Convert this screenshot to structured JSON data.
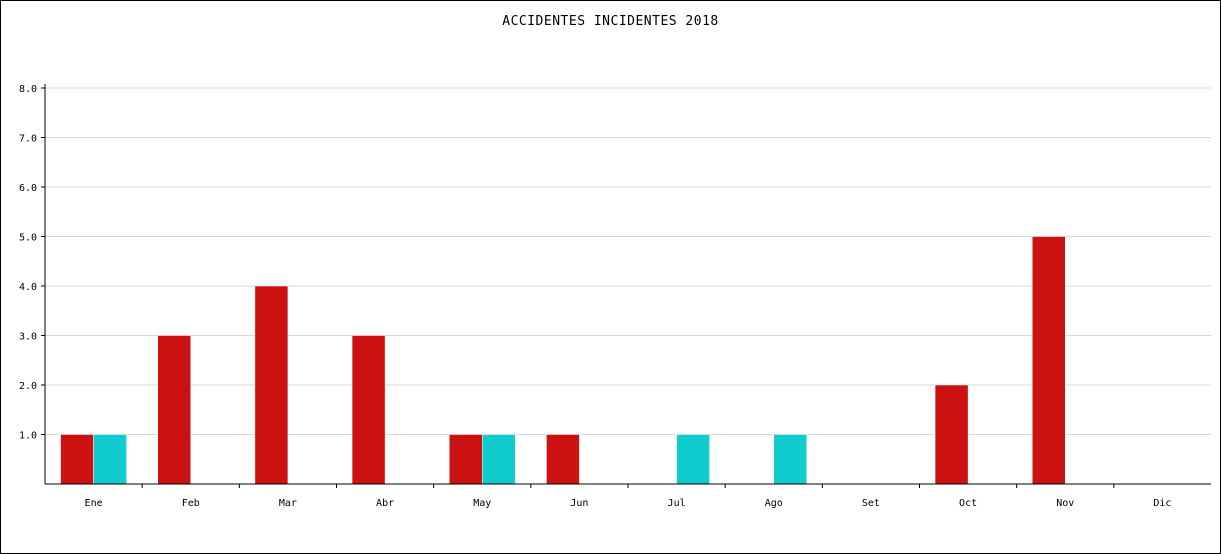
{
  "chart_data": {
    "type": "bar",
    "title": "ACCIDENTES INCIDENTES 2018",
    "categories": [
      "Ene",
      "Feb",
      "Mar",
      "Abr",
      "May",
      "Jun",
      "Jul",
      "Ago",
      "Set",
      "Oct",
      "Nov",
      "Dic"
    ],
    "series": [
      {
        "color": "#cc1111",
        "values": [
          1,
          3,
          4,
          3,
          1,
          1,
          0,
          0,
          0,
          2,
          5,
          0
        ]
      },
      {
        "color": "#11cccc",
        "values": [
          1,
          0,
          0,
          0,
          1,
          0,
          1,
          1,
          0,
          0,
          0,
          0
        ]
      }
    ],
    "yticks": [
      "1.0",
      "2.0",
      "3.0",
      "4.0",
      "5.0",
      "6.0",
      "7.0",
      "8.0"
    ],
    "ylim": [
      0,
      8
    ],
    "grid": true,
    "legend": "none"
  }
}
